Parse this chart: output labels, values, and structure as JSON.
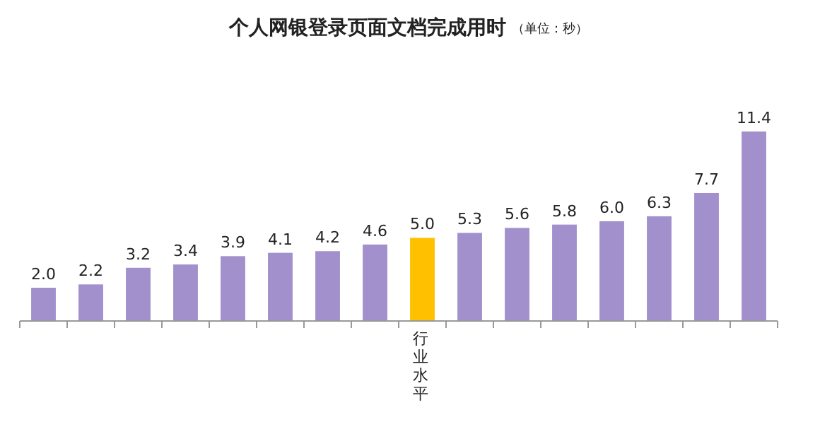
{
  "chart_data": {
    "type": "bar",
    "title": "个人网银登录页面文档完成用时",
    "subtitle": "（单位：秒）",
    "categories": [
      null,
      null,
      null,
      null,
      null,
      null,
      null,
      null,
      "行业水平",
      null,
      null,
      null,
      null,
      null,
      null,
      null
    ],
    "values": [
      2.0,
      2.2,
      3.2,
      3.4,
      3.9,
      4.1,
      4.2,
      4.6,
      5.0,
      5.3,
      5.6,
      5.8,
      6.0,
      6.3,
      7.7,
      11.4
    ],
    "colors": [
      "#a190cb",
      "#a190cb",
      "#a190cb",
      "#a190cb",
      "#a190cb",
      "#a190cb",
      "#a190cb",
      "#a190cb",
      "#ffc000",
      "#a190cb",
      "#a190cb",
      "#a190cb",
      "#a190cb",
      "#a190cb",
      "#a190cb",
      "#a190cb"
    ],
    "value_labels": [
      "2.0",
      "2.2",
      "3.2",
      "3.4",
      "3.9",
      "4.1",
      "4.2",
      "4.6",
      "5.0",
      "5.3",
      "5.6",
      "5.8",
      "6.0",
      "6.3",
      "7.7",
      "11.4"
    ]
  }
}
